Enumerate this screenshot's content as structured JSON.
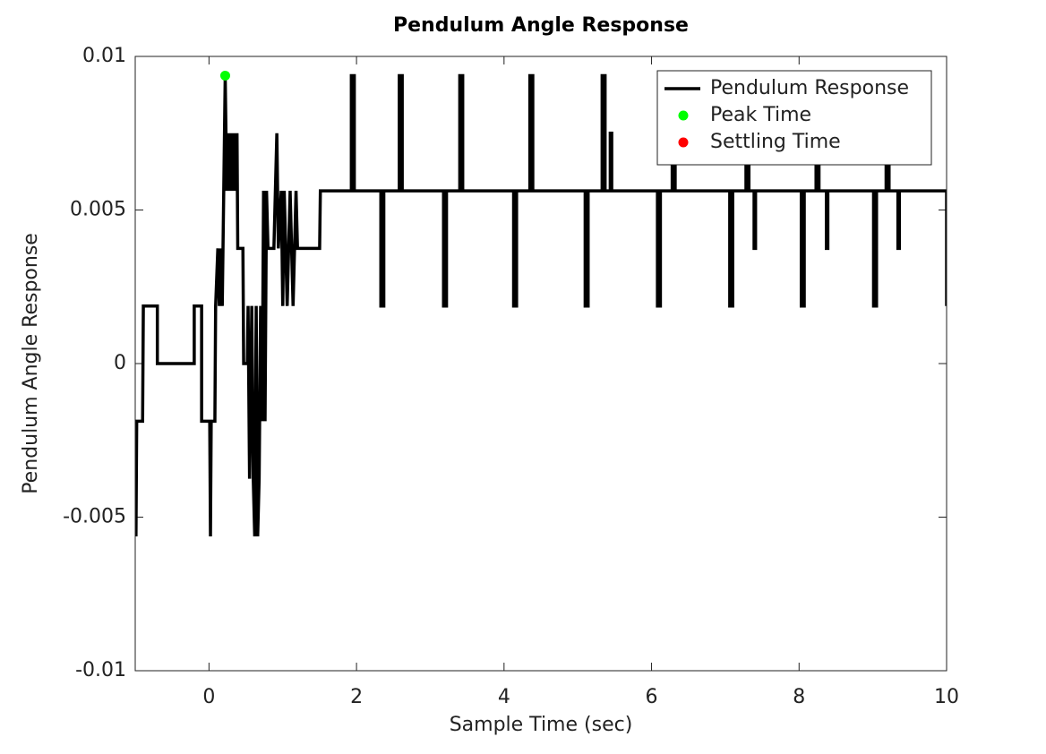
{
  "chart_data": {
    "type": "line",
    "title": "Pendulum Angle Response",
    "xlabel": "Sample Time (sec)",
    "ylabel": "Pendulum Angle Response",
    "xlim": [
      -1,
      10
    ],
    "ylim": [
      -0.01,
      0.01
    ],
    "xticks": [
      0,
      2,
      4,
      6,
      8,
      10
    ],
    "yticks": [
      -0.01,
      -0.005,
      0,
      0.005,
      0.01
    ],
    "legend": "upper right",
    "series": [
      {
        "name": "Pendulum Response",
        "color": "#000000",
        "x": [
          -1,
          -0.99,
          -0.98,
          -0.9,
          -0.89,
          -0.7,
          -0.7,
          -0.2,
          -0.2,
          -0.1,
          -0.1,
          0.01,
          0.02,
          0.03,
          0.08,
          0.09,
          0.12,
          0.14,
          0.16,
          0.18,
          0.2,
          0.22,
          0.24,
          0.26,
          0.28,
          0.3,
          0.32,
          0.34,
          0.36,
          0.38,
          0.39,
          0.46,
          0.47,
          0.52,
          0.53,
          0.55,
          0.58,
          0.6,
          0.62,
          0.64,
          0.66,
          0.68,
          0.7,
          0.72,
          0.74,
          0.76,
          0.78,
          0.8,
          0.88,
          0.9,
          0.92,
          0.94,
          0.98,
          1.0,
          1.02,
          1.06,
          1.1,
          1.14,
          1.18,
          1.2,
          1.5,
          1.51,
          1.93,
          1.93,
          1.97,
          1.97,
          2.33,
          2.33,
          2.37,
          2.37,
          2.58,
          2.58,
          2.62,
          2.62,
          3.18,
          3.18,
          3.22,
          3.22,
          3.4,
          3.4,
          3.44,
          3.44,
          4.13,
          4.13,
          4.17,
          4.17,
          4.35,
          4.35,
          4.39,
          4.39,
          5.1,
          5.1,
          5.14,
          5.14,
          5.33,
          5.33,
          5.37,
          5.37,
          5.44,
          5.44,
          5.46,
          5.46,
          6.08,
          6.08,
          6.12,
          6.12,
          6.28,
          6.28,
          6.32,
          6.32,
          7.06,
          7.06,
          7.1,
          7.1,
          7.28,
          7.28,
          7.32,
          7.32,
          7.39,
          7.39,
          7.41,
          7.41,
          8.03,
          8.03,
          8.07,
          8.07,
          8.23,
          8.23,
          8.27,
          8.27,
          8.37,
          8.37,
          8.39,
          8.39,
          9.01,
          9.01,
          9.05,
          9.05,
          9.18,
          9.18,
          9.22,
          9.22,
          9.34,
          9.34,
          9.36,
          9.36,
          10,
          10
        ],
        "values": [
          -0.00375,
          -0.005625,
          -0.001875,
          -0.001875,
          0.001875,
          0.001875,
          0,
          0,
          0.001875,
          0.001875,
          -0.001875,
          -0.001875,
          -0.005625,
          -0.001875,
          -0.001875,
          0.001875,
          0.00375,
          0.001875,
          0.00375,
          0.001875,
          0.005625,
          0.009375,
          0.005625,
          0.0075,
          0.005625,
          0.0075,
          0.005625,
          0.0075,
          0.005625,
          0.0075,
          0.00375,
          0.00375,
          0,
          0,
          0.001875,
          -0.00375,
          0.001875,
          -0.00375,
          -0.005625,
          0.001875,
          -0.005625,
          -0.00375,
          0.001875,
          -0.001875,
          0.005625,
          -0.001875,
          0.005625,
          0.00375,
          0.00375,
          0.005625,
          0.0075,
          0.00375,
          0.005625,
          0.001875,
          0.005625,
          0.001875,
          0.005625,
          0.001875,
          0.005625,
          0.00375,
          0.00375,
          0.005625,
          0.005625,
          0.009375,
          0.009375,
          0.005625,
          0.005625,
          0.001875,
          0.001875,
          0.005625,
          0.005625,
          0.009375,
          0.009375,
          0.005625,
          0.005625,
          0.001875,
          0.001875,
          0.005625,
          0.005625,
          0.009375,
          0.009375,
          0.005625,
          0.005625,
          0.001875,
          0.001875,
          0.005625,
          0.005625,
          0.009375,
          0.009375,
          0.005625,
          0.005625,
          0.001875,
          0.001875,
          0.005625,
          0.005625,
          0.009375,
          0.009375,
          0.005625,
          0.005625,
          0.0075,
          0.0075,
          0.005625,
          0.005625,
          0.001875,
          0.001875,
          0.005625,
          0.005625,
          0.009375,
          0.009375,
          0.005625,
          0.005625,
          0.001875,
          0.001875,
          0.005625,
          0.005625,
          0.009375,
          0.009375,
          0.005625,
          0.005625,
          0.00375,
          0.00375,
          0.005625,
          0.005625,
          0.001875,
          0.001875,
          0.005625,
          0.005625,
          0.009375,
          0.009375,
          0.005625,
          0.005625,
          0.00375,
          0.00375,
          0.005625,
          0.005625,
          0.001875,
          0.001875,
          0.005625,
          0.005625,
          0.009375,
          0.009375,
          0.005625,
          0.005625,
          0.00375,
          0.00375,
          0.005625,
          0.005625,
          0.001875
        ]
      },
      {
        "name": "Peak Time",
        "color": "#00ff00",
        "marker": true,
        "x": [
          0.22
        ],
        "values": [
          0.009375
        ]
      },
      {
        "name": "Settling Time",
        "color": "#ff0000",
        "marker": true,
        "x": [],
        "values": []
      }
    ]
  }
}
